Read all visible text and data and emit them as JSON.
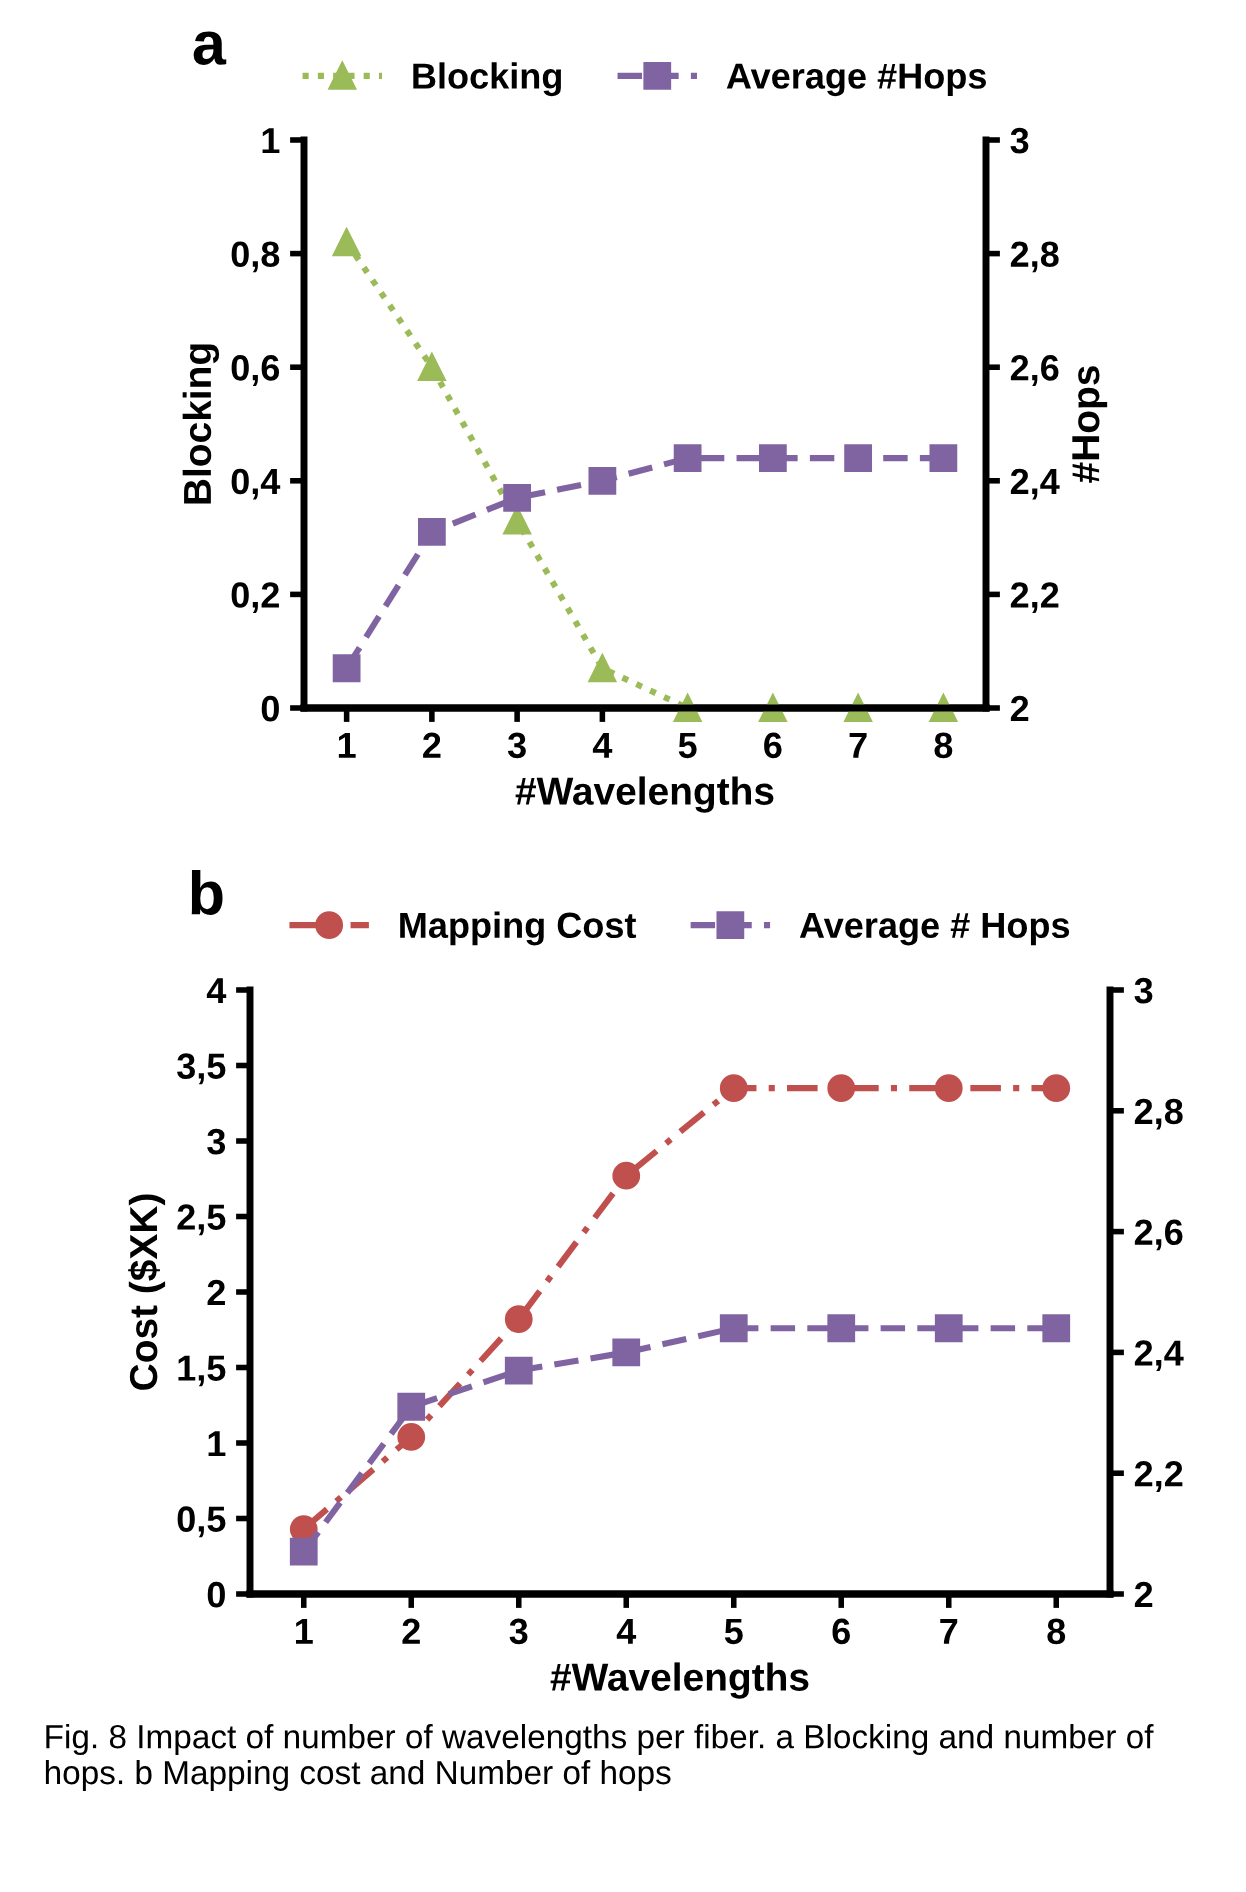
{
  "chart_data": [
    {
      "type": "line",
      "categories": [
        "1",
        "2",
        "3",
        "4",
        "5",
        "6",
        "7",
        "8"
      ],
      "xlabel": "#Wavelengths",
      "ylabel": "Blocking",
      "y2label": "#Hops",
      "ylim": [
        0,
        1
      ],
      "yticks": [
        0,
        {
          "value": 0.2,
          "label": "0,2"
        },
        {
          "value": 0.4,
          "label": "0,4"
        },
        {
          "value": 0.6,
          "label": "0,6"
        },
        {
          "value": 0.8,
          "label": "0,8"
        },
        1
      ],
      "y2lim": [
        2,
        3
      ],
      "y2ticks": [
        2,
        {
          "value": 2.2,
          "label": "2,2"
        },
        {
          "value": 2.4,
          "label": "2,4"
        },
        {
          "value": 2.6,
          "label": "2,6"
        },
        {
          "value": 2.8,
          "label": "2,8"
        },
        3
      ],
      "grid": false,
      "legend": "top",
      "annotations": [
        "a"
      ],
      "series": [
        {
          "name": "Blocking",
          "color": "#9bbb59",
          "marker": "triangle",
          "line_style": "dotted",
          "values": [
            0.82,
            0.6,
            0.33,
            0.07,
            0,
            0,
            0,
            0
          ]
        },
        {
          "name": "Average #Hops",
          "color": "#8064a2",
          "marker": "square",
          "line_style": "dashed",
          "axis": "y2",
          "values": [
            2.07,
            2.31,
            2.37,
            2.4,
            2.44,
            2.44,
            2.44,
            2.44
          ]
        }
      ]
    },
    {
      "type": "line",
      "categories": [
        "1",
        "2",
        "3",
        "4",
        "5",
        "6",
        "7",
        "8"
      ],
      "xlabel": "#Wavelengths",
      "ylabel": "Cost ($XK)",
      "ylim": [
        0,
        4
      ],
      "yticks": [
        0,
        {
          "value": 0.5,
          "label": "0,5"
        },
        1,
        {
          "value": 1.5,
          "label": "1,5"
        },
        2,
        {
          "value": 2.5,
          "label": "2,5"
        },
        3,
        {
          "value": 3.5,
          "label": "3,5"
        },
        4
      ],
      "y2lim": [
        2,
        3
      ],
      "y2ticks": [
        2,
        {
          "value": 2.2,
          "label": "2,2"
        },
        {
          "value": 2.4,
          "label": "2,4"
        },
        {
          "value": 2.6,
          "label": "2,6"
        },
        {
          "value": 2.8,
          "label": "2,8"
        },
        3
      ],
      "grid": false,
      "legend": "top",
      "annotations": [
        "b",
        "Fig. 8 Impact of number of wavelengths per fiber. a Blocking and number of hops. b Mapping cost and Number of hops"
      ],
      "series": [
        {
          "name": "Mapping Cost",
          "color": "#c0504d",
          "marker": "circle",
          "line_style": "dashdot",
          "values": [
            0.43,
            1.04,
            1.82,
            2.77,
            3.35,
            3.35,
            3.35,
            3.35
          ]
        },
        {
          "name": "Average # Hops",
          "color": "#8064a2",
          "marker": "square",
          "line_style": "dashed",
          "axis": "y2",
          "values": [
            2.07,
            2.31,
            2.37,
            2.4,
            2.44,
            2.44,
            2.44,
            2.44
          ]
        }
      ]
    }
  ]
}
